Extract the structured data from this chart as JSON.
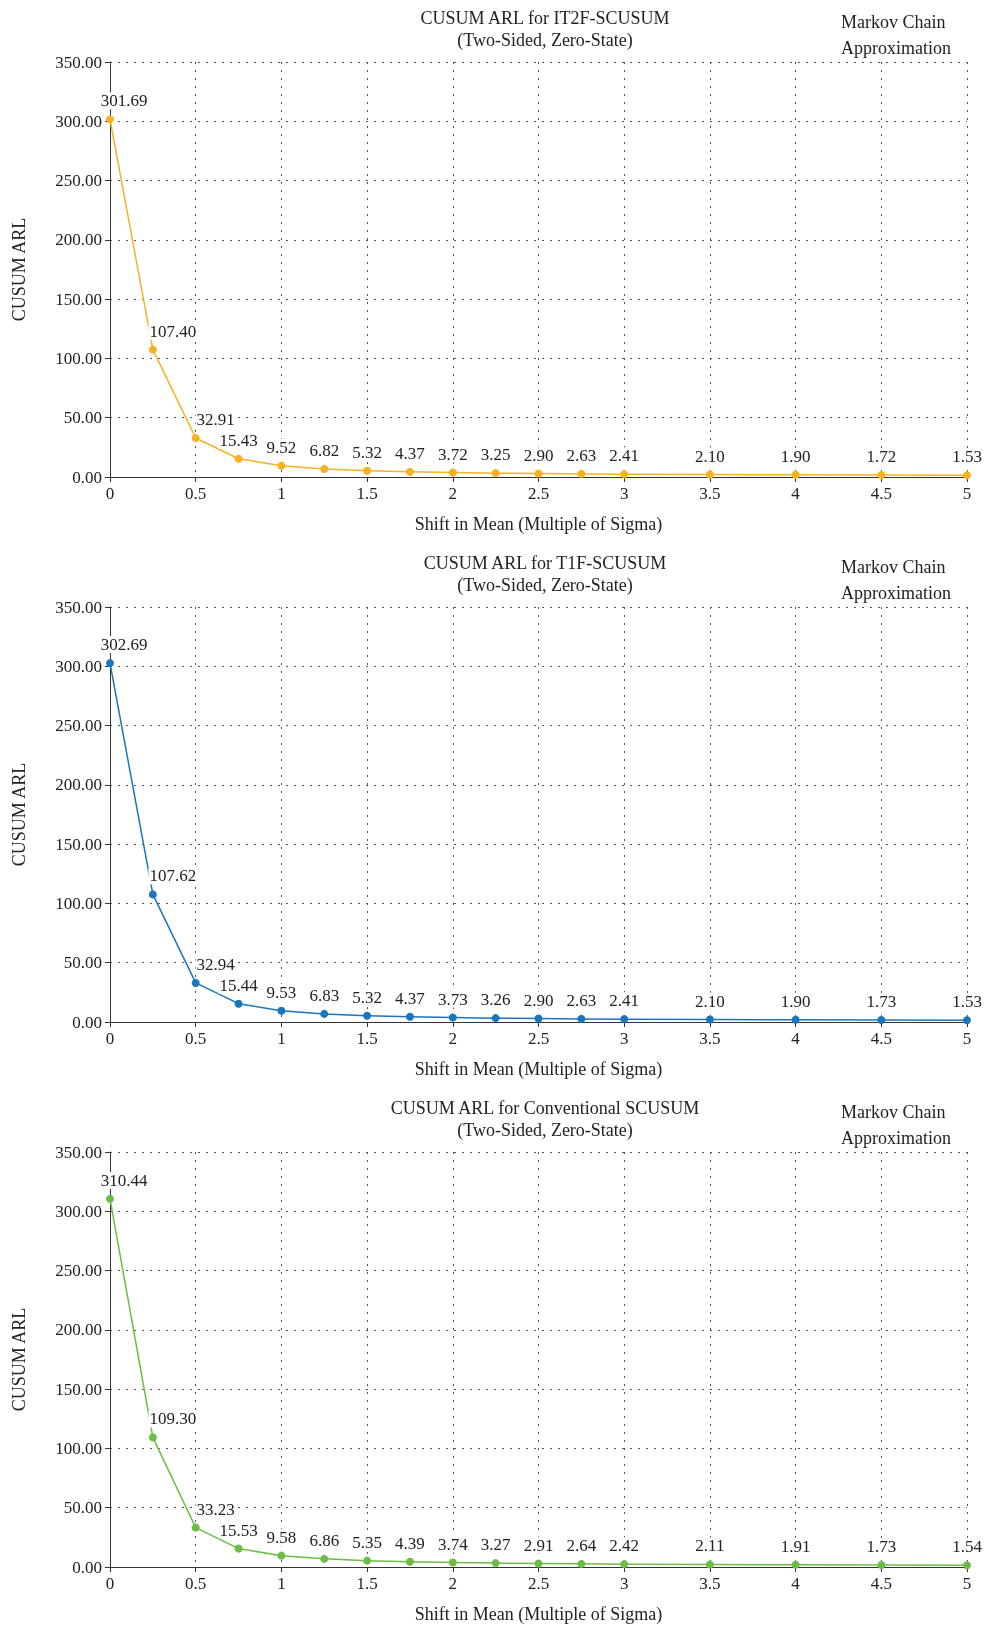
{
  "chart_data": [
    {
      "type": "line",
      "title": "CUSUM ARL for IT2F-SCUSUM",
      "subtitle": "(Two-Sided, Zero-State)",
      "annotations": [
        "Markov Chain Approximation"
      ],
      "xlabel": "Shift in Mean (Multiple of Sigma)",
      "ylabel": "CUSUM ARL",
      "x": [
        0,
        0.25,
        0.5,
        0.75,
        1,
        1.25,
        1.5,
        1.75,
        2,
        2.25,
        2.5,
        2.75,
        3,
        3.5,
        4,
        4.5,
        5
      ],
      "series": [
        {
          "color": "#f6b221",
          "values": [
            301.69,
            107.4,
            32.91,
            15.43,
            9.52,
            6.82,
            5.32,
            4.37,
            3.72,
            3.25,
            2.9,
            2.63,
            2.41,
            2.1,
            1.9,
            1.72,
            1.53
          ],
          "value_labels": [
            "301.69",
            "107.40",
            "32.91",
            "15.43",
            "9.52",
            "6.82",
            "5.32",
            "4.37",
            "3.72",
            "3.25",
            "2.90",
            "2.63",
            "2.41",
            "2.10",
            "1.90",
            "1.72",
            "1.53"
          ]
        }
      ],
      "xlim": [
        0,
        5
      ],
      "xticks": [
        0,
        0.5,
        1,
        1.5,
        2,
        2.5,
        3,
        3.5,
        4,
        4.5,
        5
      ],
      "ylim": [
        0,
        350
      ],
      "yticks": [
        {
          "value": 0,
          "label": "0.00"
        },
        {
          "value": 50,
          "label": "50.00"
        },
        {
          "value": 100,
          "label": "100.00"
        },
        {
          "value": 150,
          "label": "150.00"
        },
        {
          "value": 200,
          "label": "200.00"
        },
        {
          "value": 250,
          "label": "250.00"
        },
        {
          "value": 300,
          "label": "300.00"
        },
        {
          "value": 350,
          "label": "350.00"
        }
      ],
      "grid": true,
      "marker": "circle",
      "line_style": "solid"
    },
    {
      "type": "line",
      "title": "CUSUM ARL for T1F-SCUSUM",
      "subtitle": "(Two-Sided, Zero-State)",
      "annotations": [
        "Markov Chain Approximation"
      ],
      "xlabel": "Shift in Mean (Multiple of Sigma)",
      "ylabel": "CUSUM ARL",
      "x": [
        0,
        0.25,
        0.5,
        0.75,
        1,
        1.25,
        1.5,
        1.75,
        2,
        2.25,
        2.5,
        2.75,
        3,
        3.5,
        4,
        4.5,
        5
      ],
      "series": [
        {
          "color": "#1b75bc",
          "values": [
            302.69,
            107.62,
            32.94,
            15.44,
            9.53,
            6.83,
            5.32,
            4.37,
            3.73,
            3.26,
            2.9,
            2.63,
            2.41,
            2.1,
            1.9,
            1.73,
            1.53
          ],
          "value_labels": [
            "302.69",
            "107.62",
            "32.94",
            "15.44",
            "9.53",
            "6.83",
            "5.32",
            "4.37",
            "3.73",
            "3.26",
            "2.90",
            "2.63",
            "2.41",
            "2.10",
            "1.90",
            "1.73",
            "1.53"
          ]
        }
      ],
      "xlim": [
        0,
        5
      ],
      "xticks": [
        0,
        0.5,
        1,
        1.5,
        2,
        2.5,
        3,
        3.5,
        4,
        4.5,
        5
      ],
      "ylim": [
        0,
        350
      ],
      "yticks": [
        {
          "value": 0,
          "label": "0.00"
        },
        {
          "value": 50,
          "label": "50.00"
        },
        {
          "value": 100,
          "label": "100.00"
        },
        {
          "value": 150,
          "label": "150.00"
        },
        {
          "value": 200,
          "label": "200.00"
        },
        {
          "value": 250,
          "label": "250.00"
        },
        {
          "value": 300,
          "label": "300.00"
        },
        {
          "value": 350,
          "label": "350.00"
        }
      ],
      "grid": true,
      "marker": "circle",
      "line_style": "solid"
    },
    {
      "type": "line",
      "title": "CUSUM ARL for Conventional SCUSUM",
      "subtitle": "(Two-Sided, Zero-State)",
      "annotations": [
        "Markov Chain Approximation"
      ],
      "xlabel": "Shift in Mean (Multiple of Sigma)",
      "ylabel": "CUSUM ARL",
      "x": [
        0,
        0.25,
        0.5,
        0.75,
        1,
        1.25,
        1.5,
        1.75,
        2,
        2.25,
        2.5,
        2.75,
        3,
        3.5,
        4,
        4.5,
        5
      ],
      "series": [
        {
          "color": "#6cbd45",
          "values": [
            310.44,
            109.3,
            33.23,
            15.53,
            9.58,
            6.86,
            5.35,
            4.39,
            3.74,
            3.27,
            2.91,
            2.64,
            2.42,
            2.11,
            1.91,
            1.73,
            1.54
          ],
          "value_labels": [
            "310.44",
            "109.30",
            "33.23",
            "15.53",
            "9.58",
            "6.86",
            "5.35",
            "4.39",
            "3.74",
            "3.27",
            "2.91",
            "2.64",
            "2.42",
            "2.11",
            "1.91",
            "1.73",
            "1.54"
          ]
        }
      ],
      "xlim": [
        0,
        5
      ],
      "xticks": [
        0,
        0.5,
        1,
        1.5,
        2,
        2.5,
        3,
        3.5,
        4,
        4.5,
        5
      ],
      "ylim": [
        0,
        350
      ],
      "yticks": [
        {
          "value": 0,
          "label": "0.00"
        },
        {
          "value": 50,
          "label": "50.00"
        },
        {
          "value": 100,
          "label": "100.00"
        },
        {
          "value": 150,
          "label": "150.00"
        },
        {
          "value": 200,
          "label": "200.00"
        },
        {
          "value": 250,
          "label": "250.00"
        },
        {
          "value": 300,
          "label": "300.00"
        },
        {
          "value": 350,
          "label": "350.00"
        }
      ],
      "grid": true,
      "marker": "circle",
      "line_style": "solid"
    }
  ]
}
